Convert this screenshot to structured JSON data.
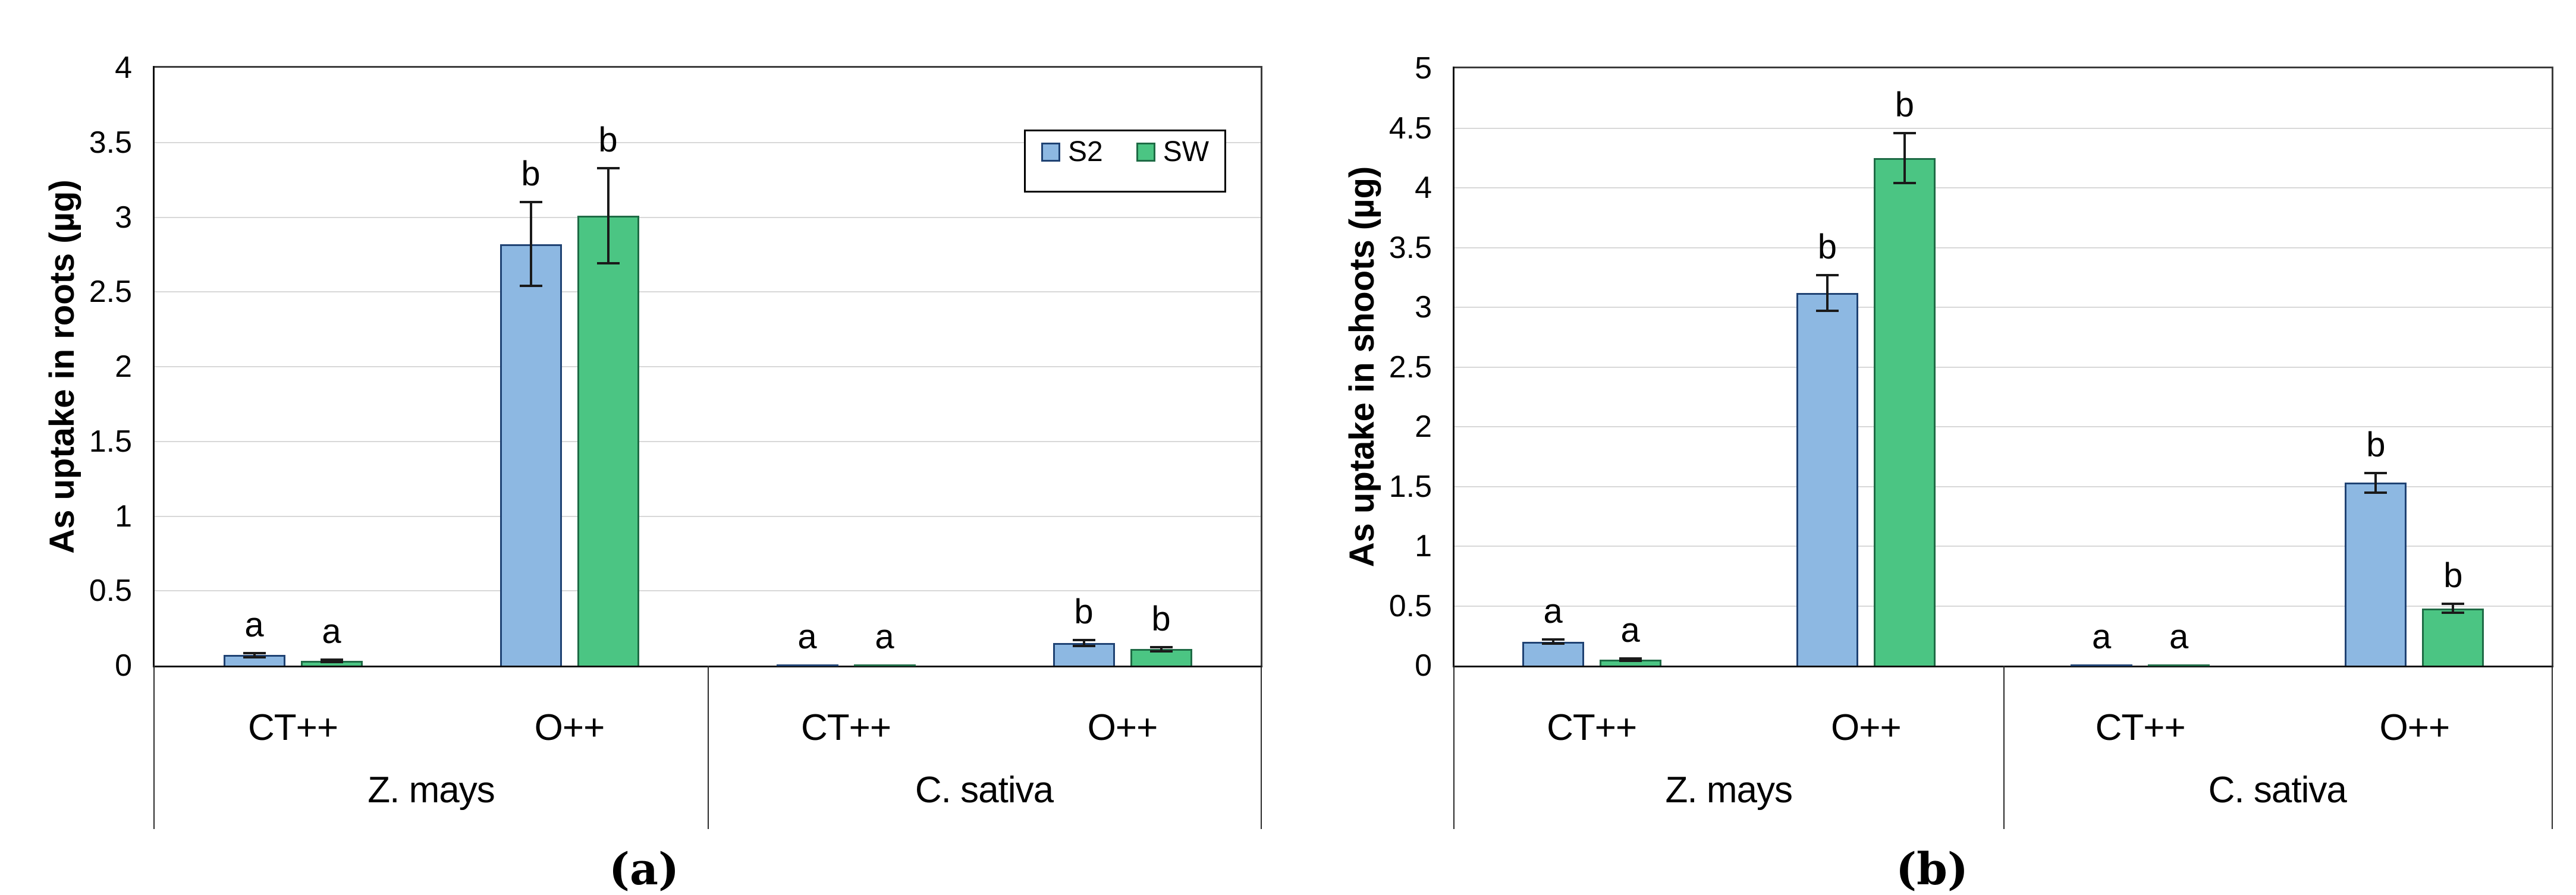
{
  "colors": {
    "s2_fill": "#8DB8E2",
    "s2_border": "#1F4273",
    "sw_fill": "#4BC583",
    "sw_border": "#1E6B45",
    "grid": "#D8D8D8",
    "axis": "#111111"
  },
  "chart_data": [
    {
      "type": "bar",
      "panel": "a",
      "caption": "(a)",
      "ylabel": "As uptake in roots (µg)",
      "ylim": [
        0,
        4
      ],
      "ystep": 0.5,
      "ytick_labels": [
        "0",
        "0.5",
        "1",
        "1.5",
        "2",
        "2.5",
        "3",
        "3.5",
        "4"
      ],
      "grid": "horizontal",
      "group_labels": [
        "Z. mays",
        "C. sativa"
      ],
      "categories": [
        "CT++",
        "O++",
        "CT++",
        "O++"
      ],
      "series": [
        {
          "name": "S2",
          "values": [
            0.07,
            2.82,
            0.004,
            0.15
          ],
          "errors": [
            0.015,
            0.28,
            0,
            0.02
          ],
          "letters": [
            "a",
            "b",
            "a",
            "b"
          ]
        },
        {
          "name": "SW",
          "values": [
            0.03,
            3.01,
            0.003,
            0.11
          ],
          "errors": [
            0.008,
            0.32,
            0,
            0.013
          ],
          "letters": [
            "a",
            "b",
            "a",
            "b"
          ]
        }
      ],
      "legend": {
        "position": "top-right",
        "items": [
          "S2",
          "SW"
        ]
      }
    },
    {
      "type": "bar",
      "panel": "b",
      "caption": "(b)",
      "ylabel": "As uptake in shoots (µg)",
      "ylim": [
        0,
        5
      ],
      "ystep": 0.5,
      "ytick_labels": [
        "0",
        "0.5",
        "1",
        "1.5",
        "2",
        "2.5",
        "3",
        "3.5",
        "4",
        "4.5",
        "5"
      ],
      "grid": "horizontal",
      "group_labels": [
        "Z. mays",
        "C. sativa"
      ],
      "categories": [
        "CT++",
        "O++",
        "CT++",
        "O++"
      ],
      "series": [
        {
          "name": "S2",
          "values": [
            0.2,
            3.12,
            0.004,
            1.53
          ],
          "errors": [
            0.018,
            0.15,
            0,
            0.08
          ],
          "letters": [
            "a",
            "b",
            "a",
            "b"
          ]
        },
        {
          "name": "SW",
          "values": [
            0.05,
            4.25,
            0.003,
            0.48
          ],
          "errors": [
            0.008,
            0.21,
            0,
            0.035
          ],
          "letters": [
            "a",
            "b",
            "a",
            "b"
          ]
        }
      ],
      "legend": {
        "position": "none",
        "items": []
      }
    }
  ]
}
